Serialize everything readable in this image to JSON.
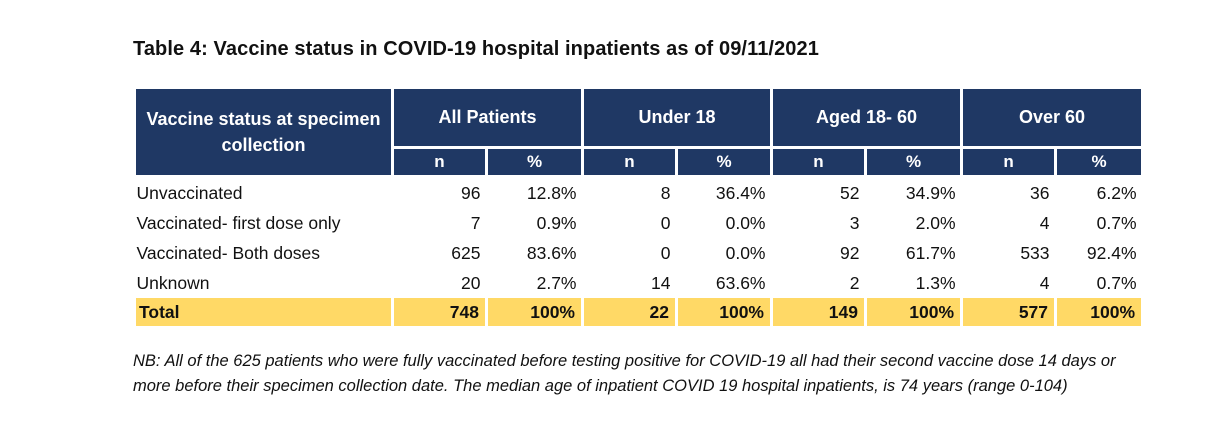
{
  "title": "Table 4: Vaccine status in COVID-19 hospital inpatients as of 09/11/2021",
  "table": {
    "status_header": "Vaccine status at specimen collection",
    "groups": [
      "All Patients",
      "Under 18",
      "Aged 18- 60",
      "Over 60"
    ],
    "subheaders": [
      "n",
      "%",
      "n",
      "%",
      "n",
      "%",
      "n",
      "%"
    ],
    "rows": [
      {
        "label": "Unvaccinated",
        "cells": [
          "96",
          "12.8%",
          "8",
          "36.4%",
          "52",
          "34.9%",
          "36",
          "6.2%"
        ]
      },
      {
        "label": "Vaccinated- first dose only",
        "cells": [
          "7",
          "0.9%",
          "0",
          "0.0%",
          "3",
          "2.0%",
          "4",
          "0.7%"
        ]
      },
      {
        "label": "Vaccinated- Both doses",
        "cells": [
          "625",
          "83.6%",
          "0",
          "0.0%",
          "92",
          "61.7%",
          "533",
          "92.4%"
        ]
      },
      {
        "label": "Unknown",
        "cells": [
          "20",
          "2.7%",
          "14",
          "63.6%",
          "2",
          "1.3%",
          "4",
          "0.7%"
        ]
      }
    ],
    "total": {
      "label": "Total",
      "cells": [
        "748",
        "100%",
        "22",
        "100%",
        "149",
        "100%",
        "577",
        "100%"
      ]
    }
  },
  "note": "NB: All of the 625 patients who were fully vaccinated before testing positive for COVID-19 all had their second vaccine dose 14 days or more before their specimen collection date. The median age of inpatient COVID 19 hospital inpatients, is 74 years (range 0-104)",
  "colors": {
    "header_bg": "#1f3864",
    "total_bg": "#ffd966"
  }
}
